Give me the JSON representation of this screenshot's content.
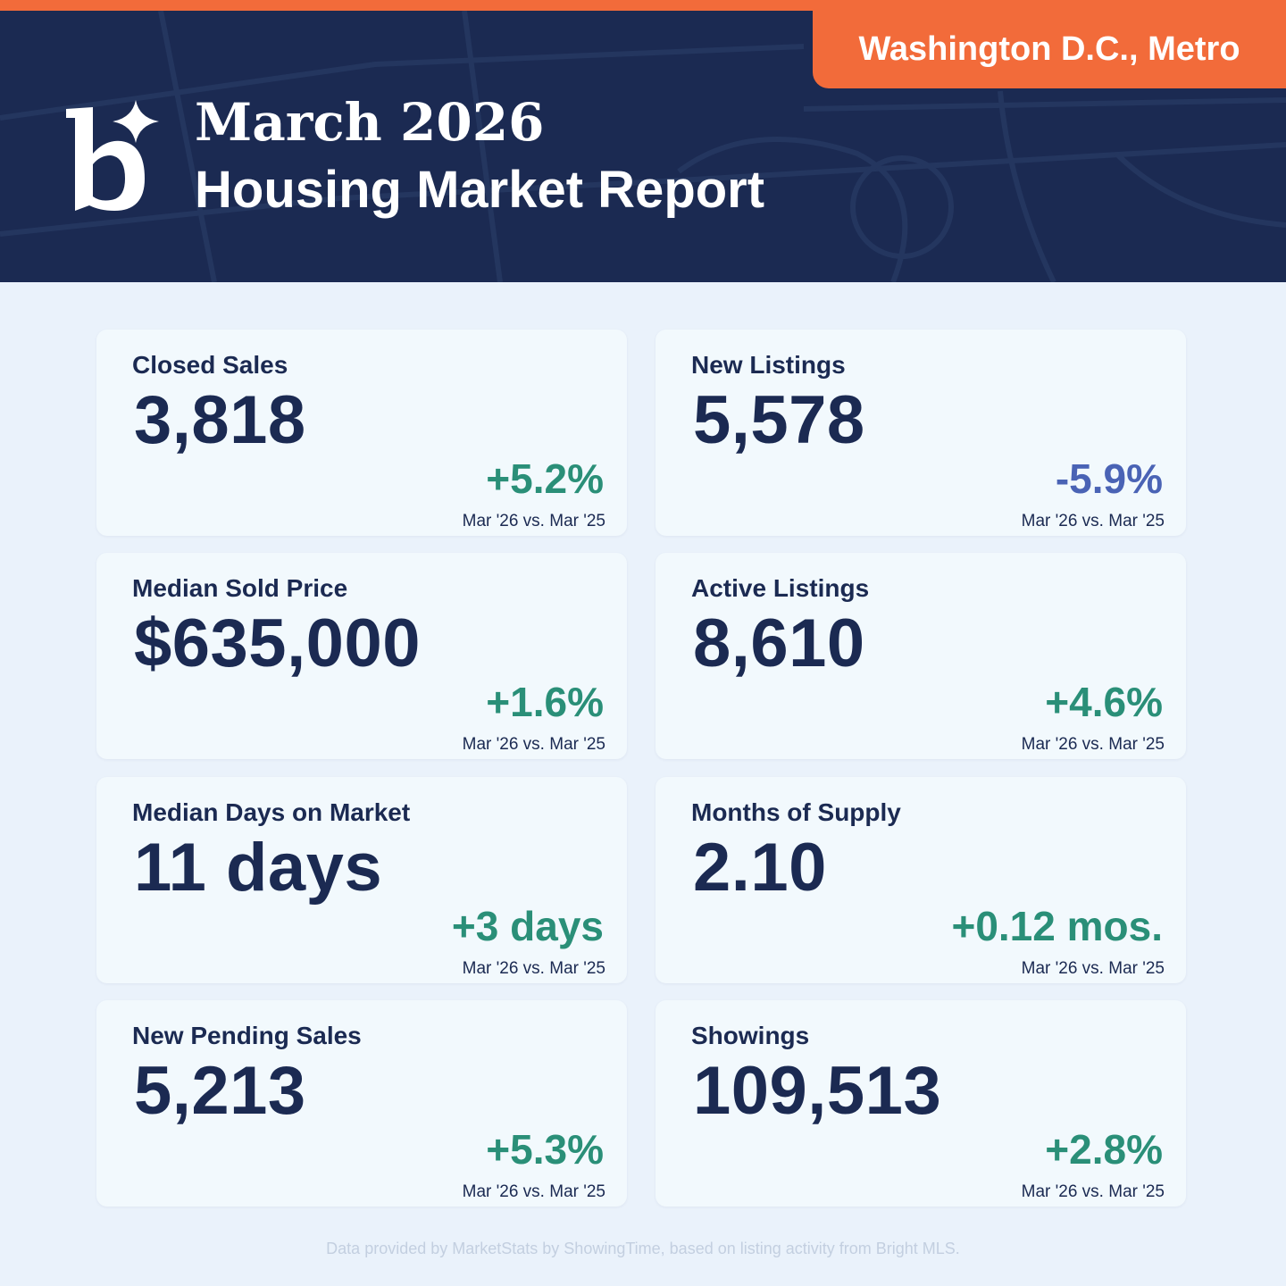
{
  "header": {
    "region": "Washington D.C., Metro",
    "title_line1": "March 2026",
    "title_line2": "Housing Market Report",
    "logo_icon": "b-sparkle-logo",
    "colors": {
      "navy": "#1b2a52",
      "orange": "#f26b3a",
      "positive": "#2a8f78",
      "negative": "#4a63b5"
    }
  },
  "metrics": [
    {
      "label": "Closed Sales",
      "value": "3,818",
      "change": "+5.2%",
      "compare": "Mar '26 vs. Mar '25",
      "trend": "positive"
    },
    {
      "label": "New Listings",
      "value": "5,578",
      "change": "-5.9%",
      "compare": "Mar '26 vs. Mar '25",
      "trend": "negative"
    },
    {
      "label": "Median Sold Price",
      "value": "$635,000",
      "change": "+1.6%",
      "compare": "Mar '26 vs. Mar '25",
      "trend": "positive"
    },
    {
      "label": "Active Listings",
      "value": "8,610",
      "change": "+4.6%",
      "compare": "Mar '26 vs. Mar '25",
      "trend": "positive"
    },
    {
      "label": "Median Days on Market",
      "value": "11 days",
      "change": "+3 days",
      "compare": "Mar '26 vs. Mar '25",
      "trend": "positive"
    },
    {
      "label": "Months of Supply",
      "value": "2.10",
      "change": "+0.12 mos.",
      "compare": "Mar '26 vs. Mar '25",
      "trend": "positive"
    },
    {
      "label": "New Pending Sales",
      "value": "5,213",
      "change": "+5.3%",
      "compare": "Mar '26 vs. Mar '25",
      "trend": "positive"
    },
    {
      "label": "Showings",
      "value": "109,513",
      "change": "+2.8%",
      "compare": "Mar '26 vs. Mar '25",
      "trend": "positive"
    }
  ],
  "footer": {
    "text": "Data provided by MarketStats by ShowingTime, based on listing activity from Bright MLS."
  }
}
